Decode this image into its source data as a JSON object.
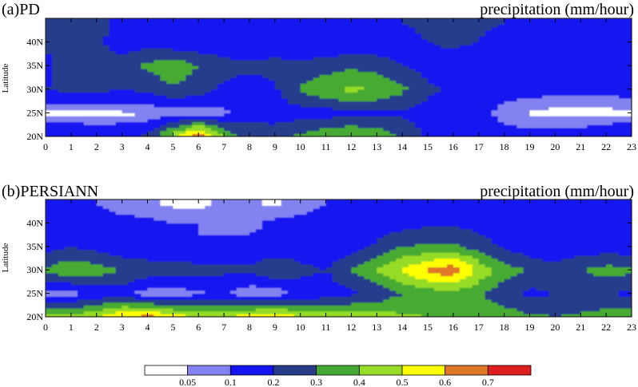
{
  "chart_data": [
    {
      "type": "heatmap",
      "panel_label": "(a)PD",
      "title": "precipitation (mm/hour)",
      "xlabel": "",
      "ylabel": "Latitude",
      "x": [
        0,
        1,
        2,
        3,
        4,
        5,
        6,
        7,
        8,
        9,
        10,
        11,
        12,
        13,
        14,
        15,
        16,
        17,
        18,
        19,
        20,
        21,
        22,
        23
      ],
      "x_tick_labels": [
        "0",
        "1",
        "2",
        "3",
        "4",
        "5",
        "6",
        "7",
        "8",
        "9",
        "10",
        "11",
        "12",
        "13",
        "14",
        "15",
        "16",
        "17",
        "18",
        "19",
        "20",
        "21",
        "22",
        "23"
      ],
      "y": [
        20,
        25,
        30,
        35,
        40,
        44
      ],
      "y_tick_labels": [
        "20N",
        "25N",
        "30N",
        "35N",
        "40N"
      ],
      "xlim": [
        0,
        23
      ],
      "ylim": [
        20,
        45
      ],
      "unit": "mm/hour",
      "levels": [
        0.05,
        0.1,
        0.2,
        0.3,
        0.4,
        0.5,
        0.6,
        0.7
      ],
      "values": [
        [
          0.18,
          0.2,
          0.18,
          0.18,
          0.22,
          0.45,
          0.72,
          0.38,
          0.26,
          0.26,
          0.32,
          0.38,
          0.4,
          0.38,
          0.28,
          0.18,
          0.16,
          0.14,
          0.12,
          0.14,
          0.14,
          0.15,
          0.18,
          0.2
        ],
        [
          0.04,
          0.03,
          0.03,
          0.04,
          0.04,
          0.05,
          0.05,
          0.08,
          0.16,
          0.15,
          0.15,
          0.15,
          0.18,
          0.18,
          0.18,
          0.16,
          0.15,
          0.12,
          0.08,
          0.04,
          0.03,
          0.03,
          0.03,
          0.04
        ],
        [
          0.2,
          0.22,
          0.22,
          0.2,
          0.22,
          0.28,
          0.25,
          0.18,
          0.15,
          0.18,
          0.32,
          0.38,
          0.42,
          0.4,
          0.32,
          0.22,
          0.18,
          0.14,
          0.12,
          0.14,
          0.12,
          0.12,
          0.12,
          0.14
        ],
        [
          0.16,
          0.28,
          0.22,
          0.24,
          0.32,
          0.38,
          0.3,
          0.24,
          0.22,
          0.24,
          0.22,
          0.25,
          0.28,
          0.26,
          0.2,
          0.16,
          0.14,
          0.12,
          0.12,
          0.14,
          0.12,
          0.12,
          0.12,
          0.12
        ],
        [
          0.22,
          0.24,
          0.22,
          0.16,
          0.15,
          0.12,
          0.12,
          0.12,
          0.12,
          0.12,
          0.12,
          0.12,
          0.12,
          0.12,
          0.14,
          0.2,
          0.22,
          0.2,
          0.15,
          0.12,
          0.12,
          0.12,
          0.12,
          0.12
        ],
        [
          0.2,
          0.22,
          0.22,
          0.18,
          0.15,
          0.12,
          0.12,
          0.12,
          0.12,
          0.12,
          0.12,
          0.12,
          0.12,
          0.14,
          0.2,
          0.24,
          0.24,
          0.22,
          0.2,
          0.18,
          0.16,
          0.15,
          0.15,
          0.15
        ]
      ]
    },
    {
      "type": "heatmap",
      "panel_label": "(b)PERSIANN",
      "title": "precipitation (mm/hour)",
      "xlabel": "",
      "ylabel": "Latitude",
      "x": [
        0,
        1,
        2,
        3,
        4,
        5,
        6,
        7,
        8,
        9,
        10,
        11,
        12,
        13,
        14,
        15,
        16,
        17,
        18,
        19,
        20,
        21,
        22,
        23
      ],
      "x_tick_labels": [
        "0",
        "1",
        "2",
        "3",
        "4",
        "5",
        "6",
        "7",
        "8",
        "9",
        "10",
        "11",
        "12",
        "13",
        "14",
        "15",
        "16",
        "17",
        "18",
        "19",
        "20",
        "21",
        "22",
        "23"
      ],
      "y": [
        20,
        25,
        30,
        35,
        40,
        44
      ],
      "y_tick_labels": [
        "20N",
        "25N",
        "30N",
        "35N",
        "40N"
      ],
      "xlim": [
        0,
        23
      ],
      "ylim": [
        20,
        45
      ],
      "unit": "mm/hour",
      "levels": [
        0.05,
        0.1,
        0.2,
        0.3,
        0.4,
        0.5,
        0.6,
        0.7
      ],
      "values": [
        [
          0.42,
          0.45,
          0.5,
          0.6,
          0.65,
          0.55,
          0.5,
          0.5,
          0.55,
          0.6,
          0.5,
          0.48,
          0.45,
          0.45,
          0.42,
          0.4,
          0.38,
          0.38,
          0.36,
          0.32,
          0.3,
          0.32,
          0.35,
          0.38
        ],
        [
          0.05,
          0.06,
          0.12,
          0.15,
          0.05,
          0.05,
          0.08,
          0.12,
          0.04,
          0.04,
          0.12,
          0.14,
          0.18,
          0.22,
          0.3,
          0.34,
          0.36,
          0.32,
          0.22,
          0.18,
          0.2,
          0.2,
          0.2,
          0.18
        ],
        [
          0.32,
          0.38,
          0.35,
          0.3,
          0.26,
          0.26,
          0.24,
          0.22,
          0.22,
          0.3,
          0.24,
          0.2,
          0.3,
          0.4,
          0.52,
          0.62,
          0.68,
          0.48,
          0.36,
          0.28,
          0.24,
          0.3,
          0.34,
          0.32
        ],
        [
          0.16,
          0.2,
          0.16,
          0.12,
          0.12,
          0.12,
          0.1,
          0.12,
          0.12,
          0.12,
          0.12,
          0.12,
          0.14,
          0.22,
          0.3,
          0.32,
          0.32,
          0.26,
          0.18,
          0.14,
          0.12,
          0.14,
          0.14,
          0.14
        ],
        [
          0.12,
          0.12,
          0.12,
          0.12,
          0.12,
          0.1,
          0.1,
          0.08,
          0.08,
          0.12,
          0.12,
          0.12,
          0.12,
          0.14,
          0.16,
          0.18,
          0.18,
          0.16,
          0.14,
          0.12,
          0.12,
          0.12,
          0.12,
          0.12
        ],
        [
          0.12,
          0.1,
          0.1,
          0.08,
          0.06,
          0.04,
          0.03,
          0.08,
          0.06,
          0.04,
          0.08,
          0.1,
          0.12,
          0.12,
          0.12,
          0.12,
          0.12,
          0.12,
          0.12,
          0.12,
          0.12,
          0.12,
          0.12,
          0.12
        ]
      ]
    }
  ],
  "colorbar": {
    "levels": [
      "0.05",
      "0.1",
      "0.2",
      "0.3",
      "0.4",
      "0.5",
      "0.6",
      "0.7"
    ],
    "colors": [
      "#ffffff",
      "#8282f0",
      "#1414f0",
      "#283c8c",
      "#46aa32",
      "#96dc28",
      "#ffff00",
      "#e17828",
      "#dc1e1e"
    ]
  }
}
